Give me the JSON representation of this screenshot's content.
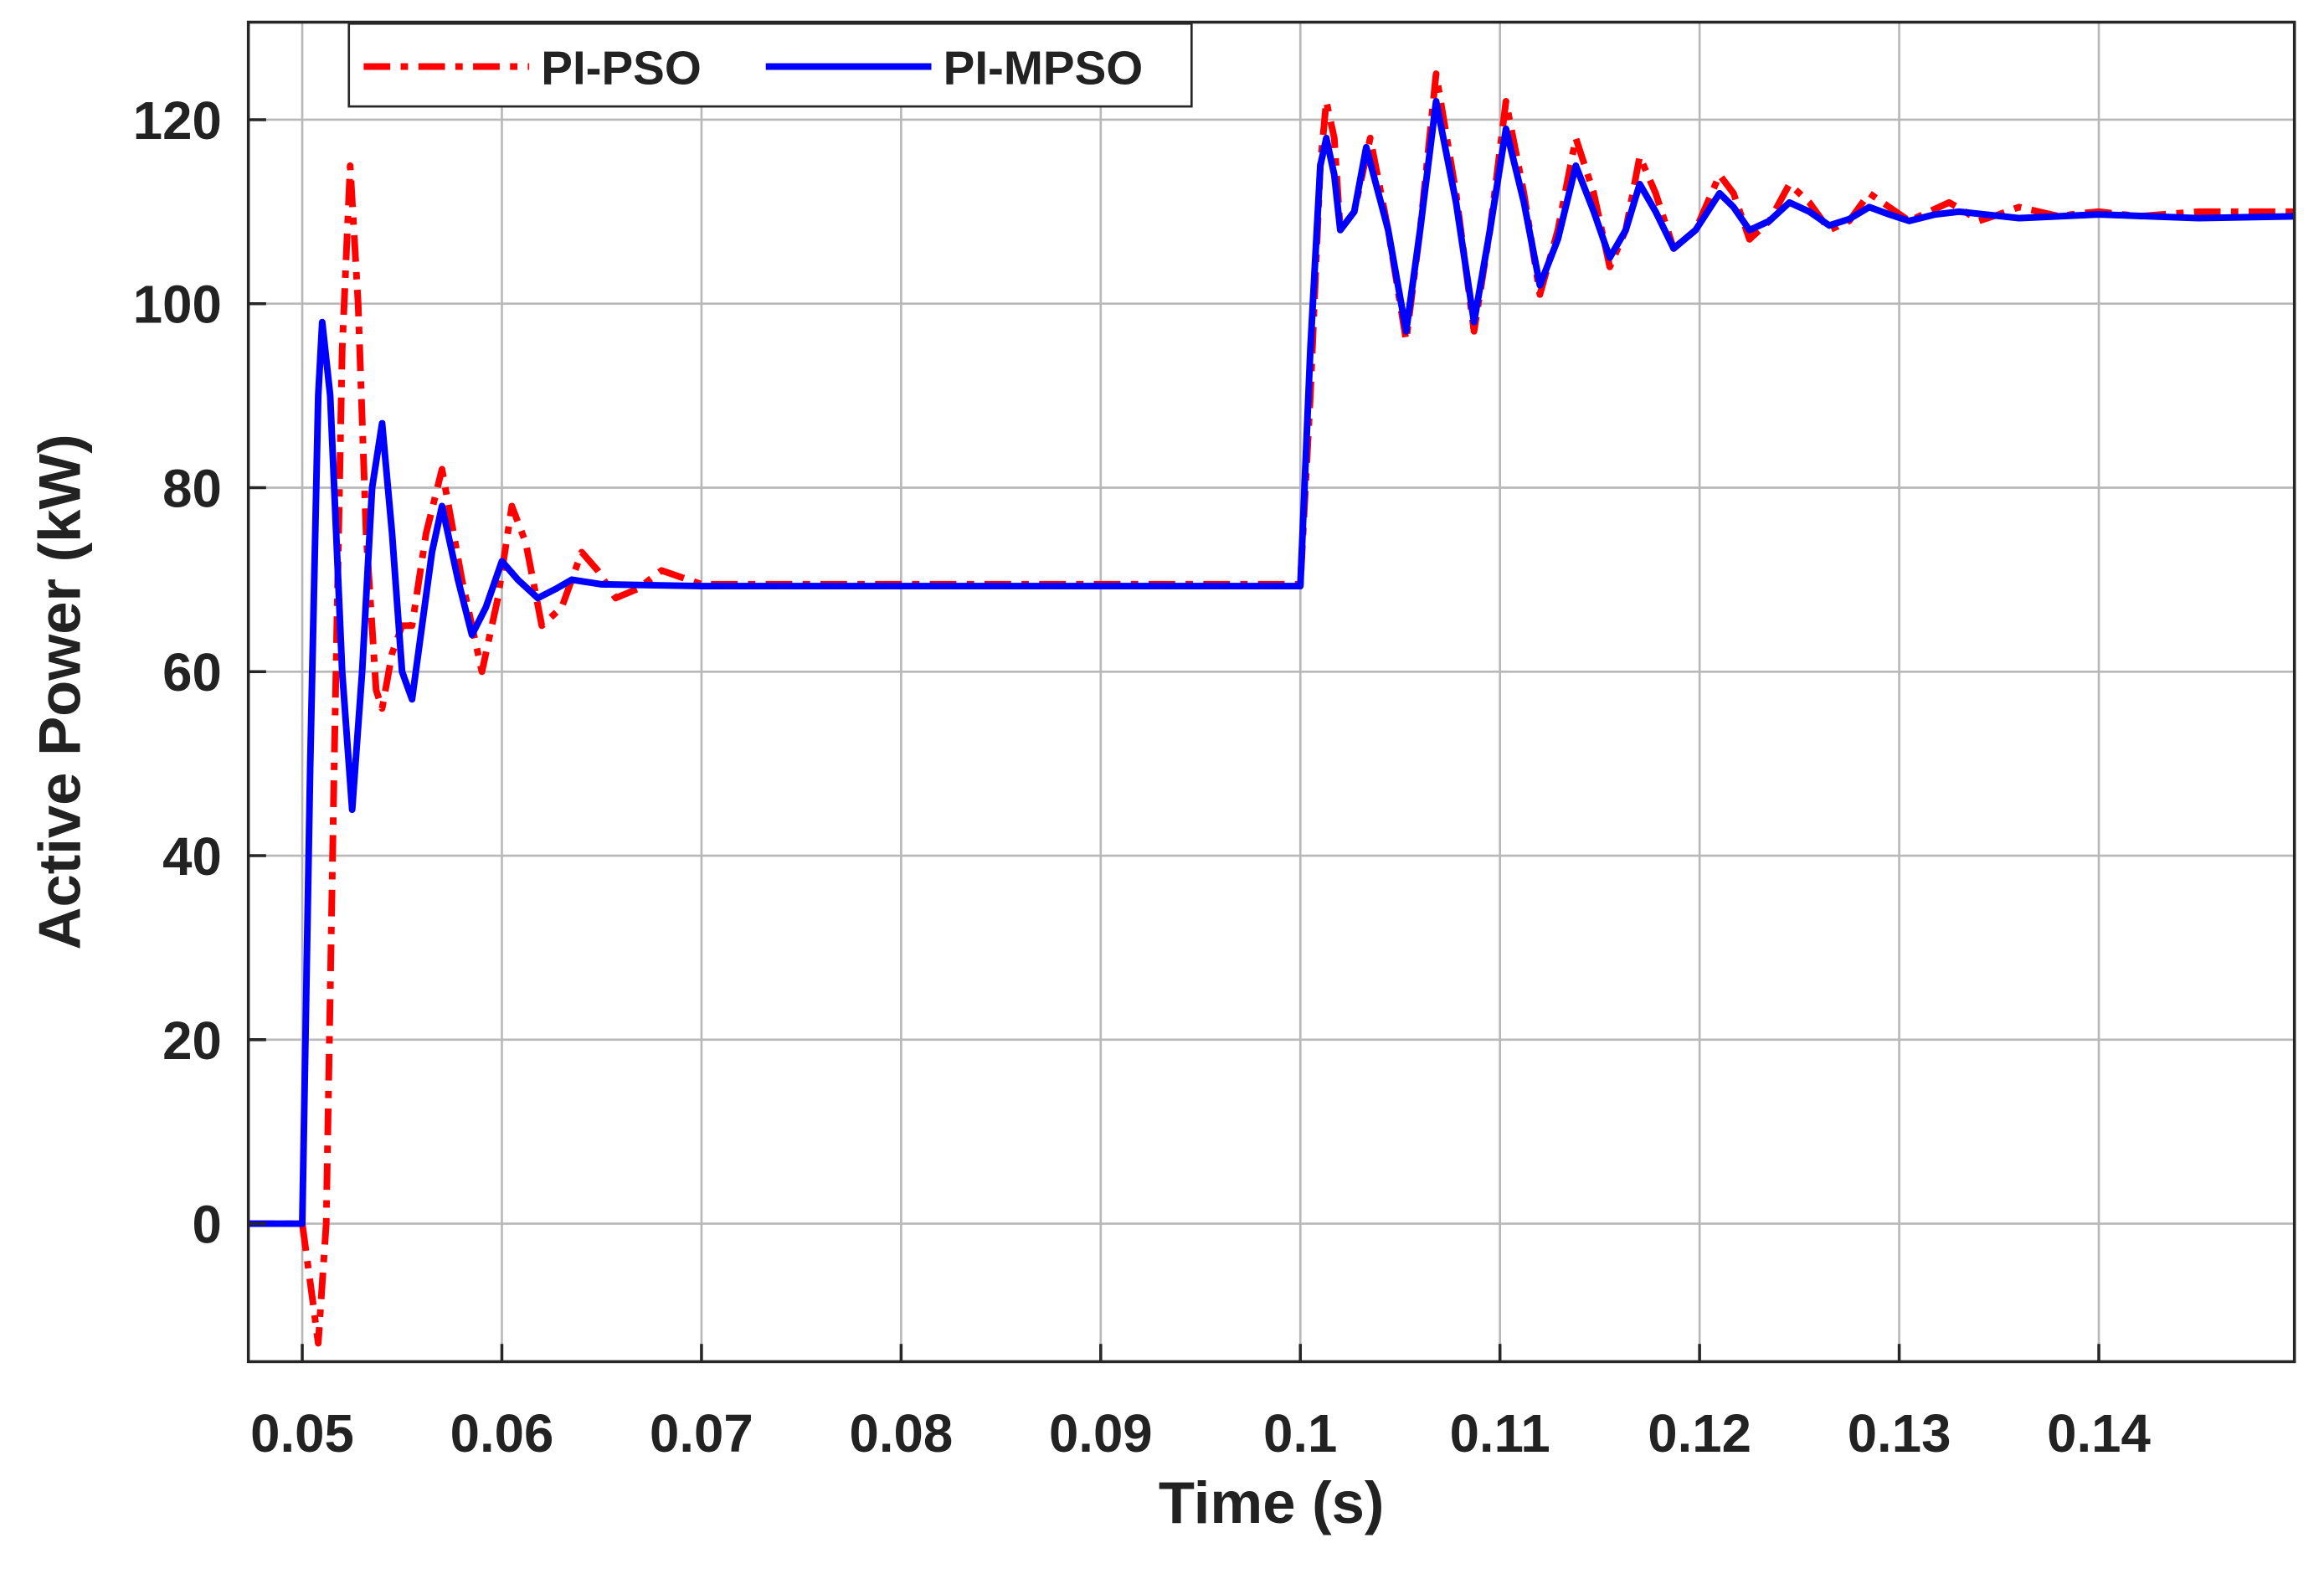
{
  "chart_data": {
    "type": "line",
    "x_label": "Time (s)",
    "y_label": "Active Power (kW)",
    "xlim": [
      0.0473,
      0.1498
    ],
    "ylim": [
      -15,
      130.6
    ],
    "xticks": [
      0.05,
      0.06,
      0.07,
      0.08,
      0.09,
      0.1,
      0.11,
      0.12,
      0.13,
      0.14
    ],
    "yticks": [
      0,
      20,
      40,
      60,
      80,
      100,
      120
    ],
    "grid": true,
    "legend": "top-left",
    "series": [
      {
        "name": "PI-PSO",
        "color": "#ff0000",
        "dash": "dashdot",
        "x": [
          0.0473,
          0.05,
          0.0505,
          0.0508,
          0.0512,
          0.0516,
          0.052,
          0.0524,
          0.0528,
          0.0532,
          0.0537,
          0.054,
          0.0545,
          0.055,
          0.0555,
          0.0562,
          0.057,
          0.058,
          0.059,
          0.0598,
          0.0605,
          0.0612,
          0.062,
          0.063,
          0.064,
          0.0648,
          0.0657,
          0.0668,
          0.068,
          0.07,
          0.08,
          0.09,
          0.1,
          0.1005,
          0.101,
          0.1013,
          0.1017,
          0.102,
          0.1027,
          0.1035,
          0.1044,
          0.1053,
          0.106,
          0.1068,
          0.1078,
          0.1087,
          0.1095,
          0.1103,
          0.1112,
          0.112,
          0.1129,
          0.1138,
          0.1147,
          0.1155,
          0.1163,
          0.117,
          0.1178,
          0.1187,
          0.1198,
          0.121,
          0.1217,
          0.1225,
          0.1235,
          0.1245,
          0.1255,
          0.1265,
          0.1275,
          0.1285,
          0.1295,
          0.1305,
          0.1315,
          0.1325,
          0.1333,
          0.134,
          0.135,
          0.136,
          0.137,
          0.138,
          0.139,
          0.14,
          0.142,
          0.145,
          0.1498
        ],
        "values": [
          0,
          0,
          -8,
          -13,
          0,
          50,
          95,
          115,
          100,
          75,
          58,
          56,
          62,
          65,
          65,
          75,
          82,
          70,
          60,
          68,
          78,
          74,
          65,
          67,
          73,
          71,
          68,
          69,
          71,
          69.5,
          69.5,
          69.5,
          69.5,
          90,
          115,
          122,
          118,
          108,
          110,
          118,
          108,
          96,
          108,
          125,
          112,
          97,
          108,
          122,
          112,
          101,
          108,
          118,
          112,
          104,
          108,
          116,
          112,
          106,
          108,
          114,
          112,
          107,
          109,
          113,
          111,
          108,
          109,
          112,
          110.5,
          109,
          110,
          111,
          110,
          109,
          109.7,
          110.5,
          110,
          109.5,
          109.8,
          110,
          109.5,
          110,
          110
        ]
      },
      {
        "name": "PI-MPSO",
        "color": "#0000ff",
        "dash": "solid",
        "x": [
          0.0473,
          0.05,
          0.0504,
          0.0508,
          0.051,
          0.0514,
          0.052,
          0.0525,
          0.053,
          0.0535,
          0.054,
          0.0545,
          0.055,
          0.0555,
          0.056,
          0.0565,
          0.057,
          0.0578,
          0.0585,
          0.0592,
          0.06,
          0.0608,
          0.0618,
          0.0627,
          0.0635,
          0.065,
          0.07,
          0.08,
          0.09,
          0.1,
          0.1005,
          0.101,
          0.1013,
          0.1017,
          0.102,
          0.1027,
          0.1033,
          0.1044,
          0.1053,
          0.106,
          0.1068,
          0.1078,
          0.1087,
          0.1095,
          0.1103,
          0.1112,
          0.112,
          0.1129,
          0.1138,
          0.1147,
          0.1155,
          0.1163,
          0.117,
          0.1178,
          0.1187,
          0.1198,
          0.121,
          0.1217,
          0.1225,
          0.1235,
          0.1245,
          0.1255,
          0.1265,
          0.1275,
          0.1285,
          0.1295,
          0.1305,
          0.1318,
          0.133,
          0.136,
          0.14,
          0.145,
          0.1498
        ],
        "values": [
          0,
          0,
          50,
          90,
          98,
          90,
          60,
          45,
          60,
          80,
          87,
          75,
          60,
          57,
          65,
          73,
          78,
          70,
          64,
          67,
          72,
          70,
          68,
          69,
          70,
          69.5,
          69.3,
          69.3,
          69.3,
          69.3,
          95,
          115,
          118,
          114,
          108,
          110,
          117,
          108,
          97,
          108,
          122,
          111,
          98,
          108,
          119,
          111,
          102,
          107,
          115,
          110,
          105,
          108,
          113,
          110,
          106,
          108,
          112,
          110.5,
          108,
          109,
          111,
          110,
          108.5,
          109.2,
          110.5,
          109.7,
          109,
          109.7,
          110,
          109.3,
          109.7,
          109.3,
          109.5
        ]
      }
    ]
  }
}
